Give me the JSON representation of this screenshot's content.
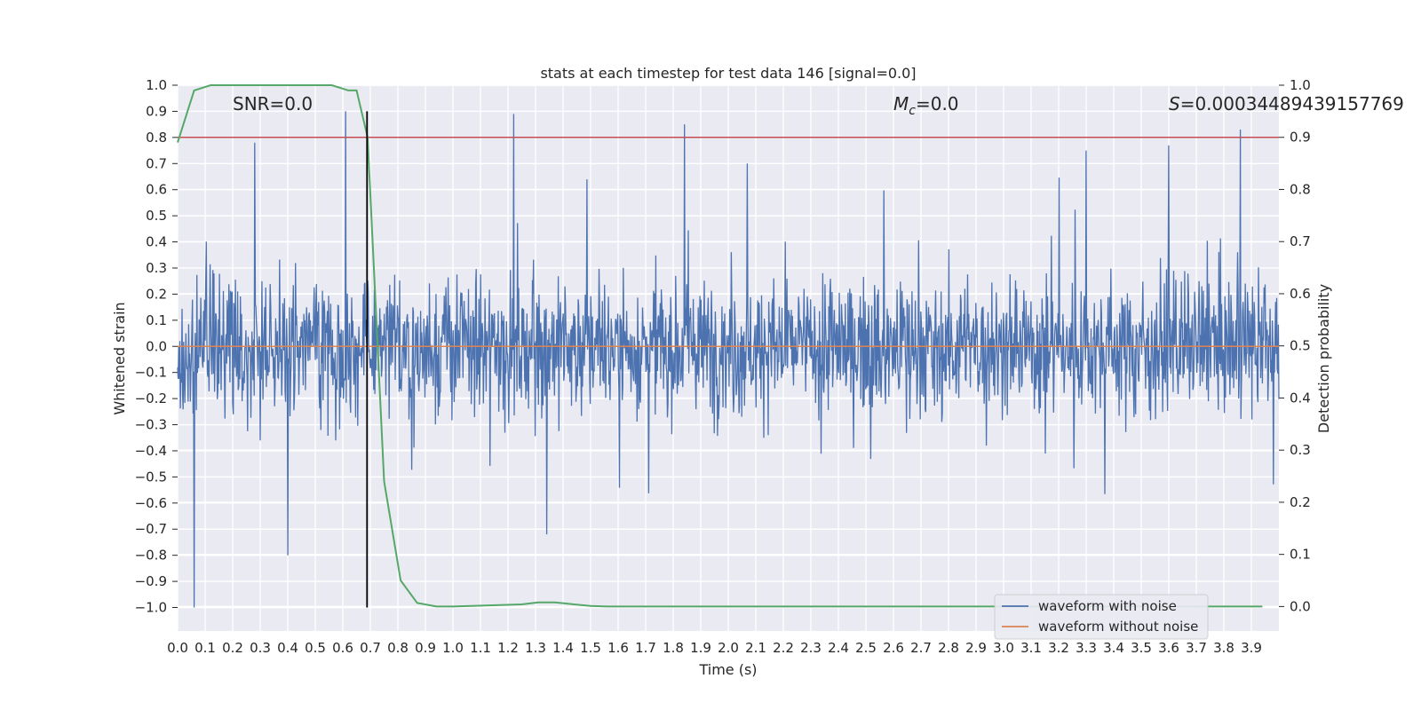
{
  "chart_data": {
    "type": "line",
    "title": "stats at each timestep for test data 146 [signal=0.0]",
    "xlabel": "Time (s)",
    "ylabel": "Whitened strain",
    "y2label": "Detection probability",
    "xlim": [
      0.0,
      4.0
    ],
    "ylim": [
      -1.09,
      1.0
    ],
    "y2lim": [
      -0.047,
      1.0
    ],
    "x_ticks": [
      "0.0",
      "0.1",
      "0.2",
      "0.3",
      "0.4",
      "0.5",
      "0.6",
      "0.7",
      "0.8",
      "0.9",
      "1.0",
      "1.1",
      "1.2",
      "1.3",
      "1.4",
      "1.5",
      "1.6",
      "1.7",
      "1.8",
      "1.9",
      "2.0",
      "2.1",
      "2.2",
      "2.3",
      "2.4",
      "2.5",
      "2.6",
      "2.7",
      "2.8",
      "2.9",
      "3.0",
      "3.1",
      "3.2",
      "3.3",
      "3.4",
      "3.5",
      "3.6",
      "3.7",
      "3.8",
      "3.9"
    ],
    "y_ticks": [
      "1.0",
      "0.9",
      "0.8",
      "0.7",
      "0.6",
      "0.5",
      "0.4",
      "0.3",
      "0.2",
      "0.1",
      "0.0",
      "−0.1",
      "−0.2",
      "−0.3",
      "−0.4",
      "−0.5",
      "−0.6",
      "−0.7",
      "−0.8",
      "−0.9",
      "−1.0"
    ],
    "y2_ticks": [
      "1.0",
      "0.9",
      "0.8",
      "0.7",
      "0.6",
      "0.5",
      "0.4",
      "0.3",
      "0.2",
      "0.1",
      "0.0"
    ],
    "annotations": {
      "snr": "SNR=0.0",
      "mc_symbol": "M",
      "mc_sub": "c",
      "mc_value": "=0.0",
      "s_symbol": "S",
      "s_value": "=0.00034489439157769"
    },
    "series": [
      {
        "name": "waveform with noise",
        "color": "#4c72b0",
        "axis": "left",
        "style": "dense noise, approx. range -1.0 to 0.9, most values within ±0.45",
        "spikes": [
          [
            0.06,
            -1.0
          ],
          [
            0.28,
            0.78
          ],
          [
            0.4,
            -0.8
          ],
          [
            0.61,
            0.9
          ],
          [
            1.22,
            0.89
          ],
          [
            1.34,
            -0.72
          ],
          [
            1.84,
            0.85
          ],
          [
            2.07,
            0.7
          ],
          [
            3.3,
            0.75
          ],
          [
            3.6,
            0.77
          ],
          [
            3.86,
            0.83
          ]
        ]
      },
      {
        "name": "waveform without noise",
        "color": "#dd8452",
        "axis": "left",
        "x": [
          0.0,
          4.0
        ],
        "y": [
          0.0,
          0.0
        ]
      },
      {
        "name": "detection probability",
        "color": "#55a868",
        "axis": "right",
        "x": [
          0.0,
          0.06,
          0.12,
          0.19,
          0.25,
          0.31,
          0.37,
          0.44,
          0.5,
          0.56,
          0.62,
          0.65,
          0.69,
          0.75,
          0.81,
          0.87,
          0.94,
          1.0,
          1.25,
          1.31,
          1.37,
          1.44,
          1.5,
          1.56,
          3.94
        ],
        "y": [
          0.89,
          0.99,
          1.0,
          1.0,
          1.0,
          1.0,
          1.0,
          1.0,
          1.0,
          1.0,
          0.99,
          0.99,
          0.9,
          0.24,
          0.05,
          0.007,
          0.0,
          0.0,
          0.004,
          0.008,
          0.008,
          0.004,
          0.001,
          0.0,
          0.0
        ]
      }
    ],
    "hlines": [
      {
        "axis": "right",
        "y": 0.9,
        "color": "#c44e52"
      }
    ],
    "vlines": [
      {
        "x": 0.688,
        "ymin": -1.0,
        "ymax": 0.9,
        "color": "#000000"
      }
    ],
    "legend": {
      "position": "lower-right",
      "entries": [
        {
          "label": "waveform with noise",
          "color": "#4c72b0"
        },
        {
          "label": "waveform without noise",
          "color": "#dd8452"
        }
      ]
    },
    "grid": true,
    "background": "#eaeaf2"
  }
}
